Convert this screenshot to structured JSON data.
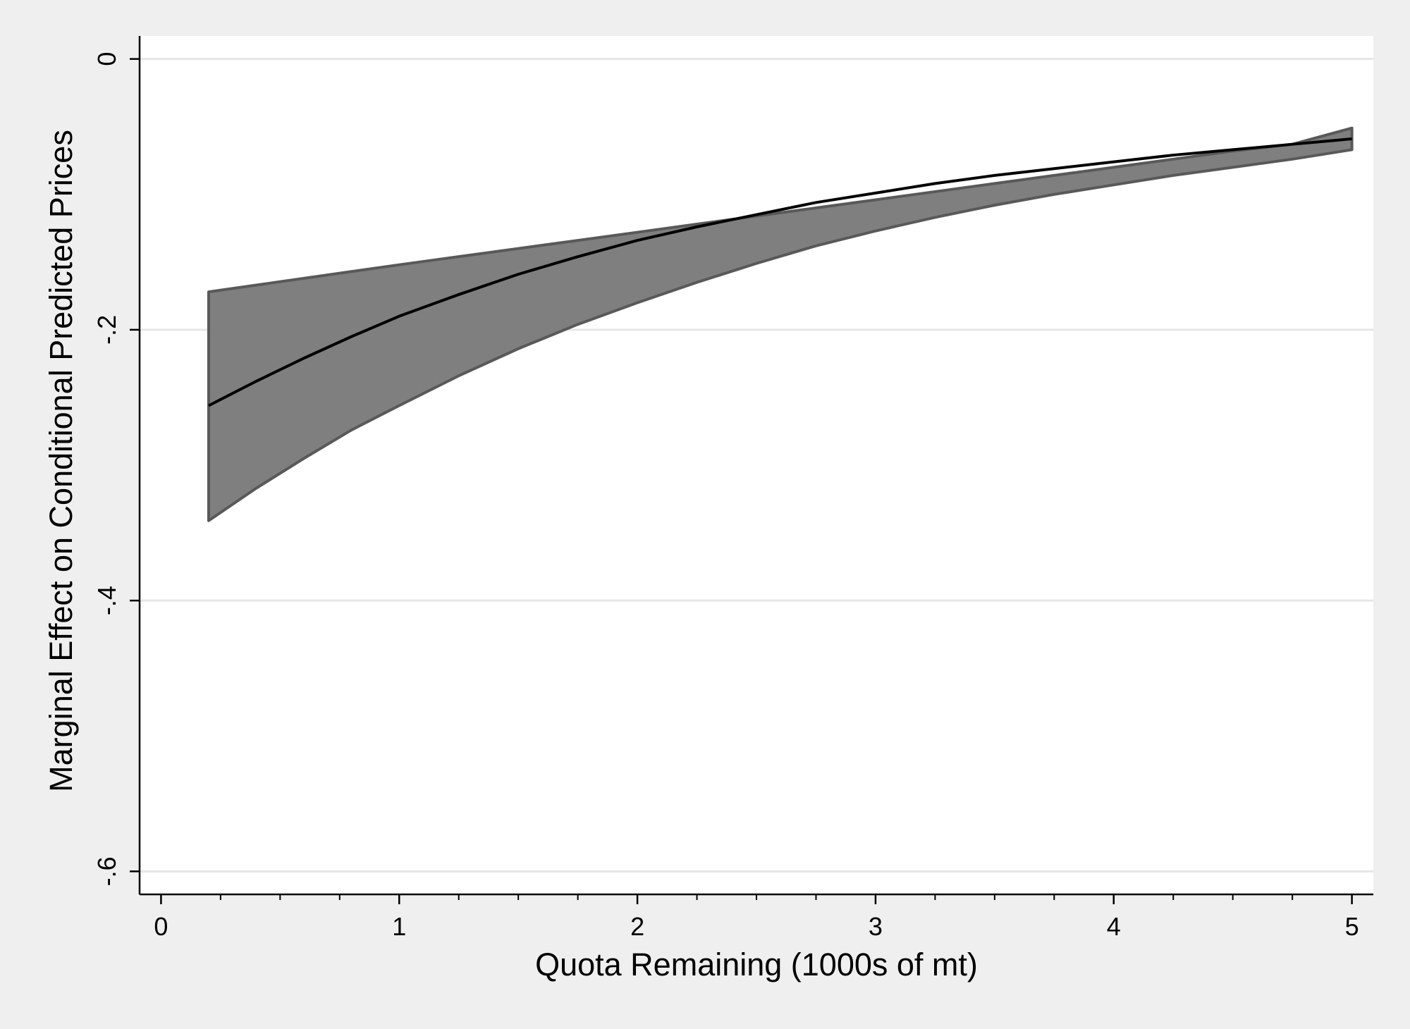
{
  "chart_data": {
    "type": "line",
    "title": "",
    "xlabel": "Quota Remaining (1000s of mt)",
    "ylabel": "Marginal Effect on Conditional Predicted Prices",
    "xlim": [
      -0.09,
      5.09
    ],
    "ylim": [
      -0.617,
      0.017
    ],
    "x_ticks": [
      0,
      1,
      2,
      3,
      4,
      5
    ],
    "x_tick_labels": [
      "0",
      "1",
      "2",
      "3",
      "4",
      "5"
    ],
    "x_minor_ticks": [
      0.25,
      0.5,
      0.75,
      1.25,
      1.5,
      1.75,
      2.25,
      2.5,
      2.75,
      3.25,
      3.5,
      3.75,
      4.25,
      4.5,
      4.75
    ],
    "y_ticks": [
      0,
      -0.2,
      -0.4,
      -0.6
    ],
    "y_tick_labels": [
      "0",
      "-.2",
      "-.4",
      "-.6"
    ],
    "grid": true,
    "legend": "none",
    "colors": {
      "background": "#efefef",
      "plot_area": "#ffffff",
      "band_fill": "#7f7f7f",
      "band_edge": "#595959",
      "line": "#000000",
      "grid": "#e6e6e6"
    },
    "series": [
      {
        "type": "line",
        "x": [
          0.2,
          0.4,
          0.6,
          0.8,
          1.0,
          1.25,
          1.5,
          1.75,
          2.0,
          2.25,
          2.5,
          2.75,
          3.0,
          3.25,
          3.5,
          3.75,
          4.0,
          4.25,
          4.5,
          4.75,
          5.0
        ],
        "y": [
          -0.256,
          -0.238,
          -0.221,
          -0.205,
          -0.19,
          -0.174,
          -0.159,
          -0.146,
          -0.134,
          -0.124,
          -0.115,
          -0.106,
          -0.099,
          -0.092,
          -0.086,
          -0.081,
          -0.076,
          -0.071,
          -0.067,
          -0.063,
          -0.059
        ]
      },
      {
        "type": "band",
        "x": [
          0.2,
          0.4,
          0.6,
          0.8,
          1.0,
          1.25,
          1.5,
          1.75,
          2.0,
          2.25,
          2.5,
          2.75,
          3.0,
          3.25,
          3.5,
          3.75,
          4.0,
          4.25,
          4.5,
          4.75,
          5.0
        ],
        "upper": [
          -0.172,
          -0.167,
          -0.162,
          -0.157,
          -0.152,
          -0.146,
          -0.14,
          -0.134,
          -0.128,
          -0.122,
          -0.116,
          -0.11,
          -0.104,
          -0.098,
          -0.092,
          -0.086,
          -0.08,
          -0.074,
          -0.068,
          -0.063,
          -0.051
        ],
        "lower": [
          -0.341,
          -0.317,
          -0.295,
          -0.274,
          -0.256,
          -0.234,
          -0.214,
          -0.196,
          -0.18,
          -0.165,
          -0.151,
          -0.138,
          -0.127,
          -0.117,
          -0.108,
          -0.1,
          -0.093,
          -0.086,
          -0.08,
          -0.074,
          -0.067
        ]
      }
    ]
  }
}
